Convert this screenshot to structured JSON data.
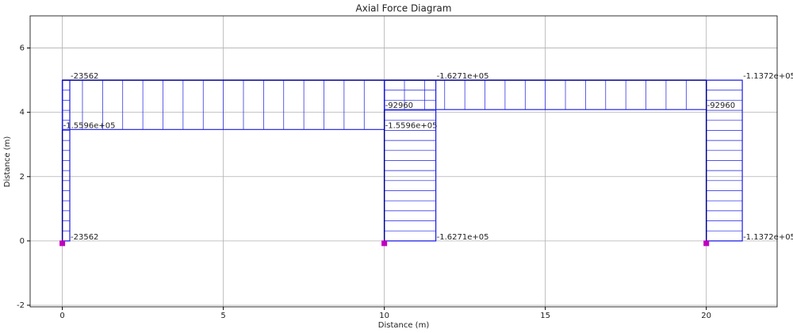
{
  "chart_data": {
    "type": "frame-diagram",
    "title": "Axial Force Diagram",
    "xlabel": "Distance (m)",
    "ylabel": "Distance (m)",
    "xlim": [
      -1.0,
      22.2
    ],
    "ylim": [
      -2.05,
      7.0
    ],
    "xticks": [
      0,
      5,
      10,
      15,
      20
    ],
    "yticks": [
      -2,
      0,
      2,
      4,
      6
    ],
    "grid": true,
    "frame_color": "#00008b",
    "diagram_color": "#1a1ae6",
    "members": [
      {
        "start": [
          0,
          0
        ],
        "end": [
          0,
          5
        ],
        "values": [
          -23562,
          -23562
        ]
      },
      {
        "start": [
          0,
          5
        ],
        "end": [
          10,
          5
        ],
        "values": [
          -155960,
          -155960
        ],
        "value_labels": [
          "-1.5596e+05",
          "-1.5596e+05"
        ]
      },
      {
        "start": [
          10,
          0
        ],
        "end": [
          10,
          5
        ],
        "values": [
          -162710,
          -162710
        ],
        "value_labels": [
          "-1.6271e+05",
          "-1.6271e+05"
        ]
      },
      {
        "start": [
          10,
          5
        ],
        "end": [
          20,
          5
        ],
        "values": [
          -92960,
          -92960
        ]
      },
      {
        "start": [
          20,
          0
        ],
        "end": [
          20,
          5
        ],
        "values": [
          -113720,
          -113720
        ],
        "value_labels": [
          "-1.1372e+05",
          "-1.1372e+05"
        ]
      }
    ],
    "supports": {
      "x": [
        0,
        10,
        20
      ],
      "y": [
        0,
        0,
        0
      ],
      "color": "#bf00bf"
    }
  }
}
